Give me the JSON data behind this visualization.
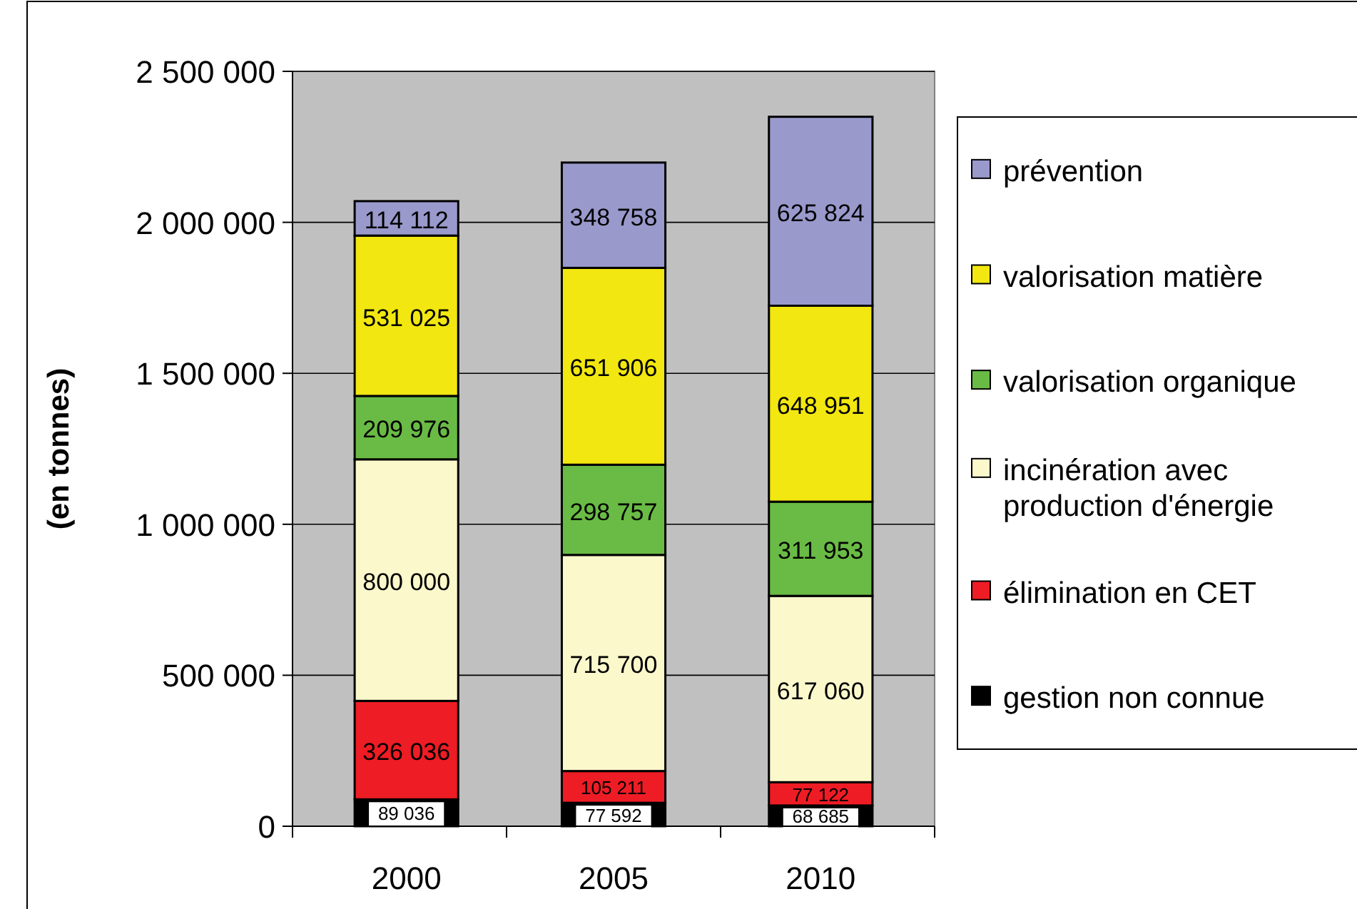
{
  "chart_data": {
    "type": "bar",
    "stacked": true,
    "ylabel": "(en tonnes)",
    "categories": [
      "2000",
      "2005",
      "2010"
    ],
    "ylim": [
      0,
      2500000
    ],
    "yticks": [
      {
        "value": 0,
        "label": "0"
      },
      {
        "value": 500000,
        "label": "500 000"
      },
      {
        "value": 1000000,
        "label": "1 000 000"
      },
      {
        "value": 1500000,
        "label": "1 500 000"
      },
      {
        "value": 2000000,
        "label": "2 000 000"
      },
      {
        "value": 2500000,
        "label": "2 500 000"
      }
    ],
    "grid": "y",
    "legend": "right",
    "series": [
      {
        "name": "gestion non connue",
        "color": "#000000",
        "values": [
          89036,
          77592,
          68685
        ],
        "value_labels": [
          "89 036",
          "77 592",
          "68 685"
        ]
      },
      {
        "name": "élimination en CET",
        "color": "#ee1c24",
        "values": [
          326036,
          105211,
          77122
        ],
        "value_labels": [
          "326 036",
          "105 211",
          "77 122"
        ]
      },
      {
        "name": "incinération avec production d'énergie",
        "color": "#fbf8cc",
        "values": [
          800000,
          715700,
          617060
        ],
        "value_labels": [
          "800 000",
          "715 700",
          "617 060"
        ]
      },
      {
        "name": "valorisation organique",
        "color": "#6abb45",
        "values": [
          209976,
          298757,
          311953
        ],
        "value_labels": [
          "209 976",
          "298 757",
          "311 953"
        ]
      },
      {
        "name": "valorisation matière",
        "color": "#f2e710",
        "values": [
          531025,
          651906,
          648951
        ],
        "value_labels": [
          "531 025",
          "651 906",
          "648 951"
        ]
      },
      {
        "name": "prévention",
        "color": "#9999cc",
        "values": [
          114112,
          348758,
          625824
        ],
        "value_labels": [
          "114 112",
          "348 758",
          "625 824"
        ]
      }
    ]
  }
}
